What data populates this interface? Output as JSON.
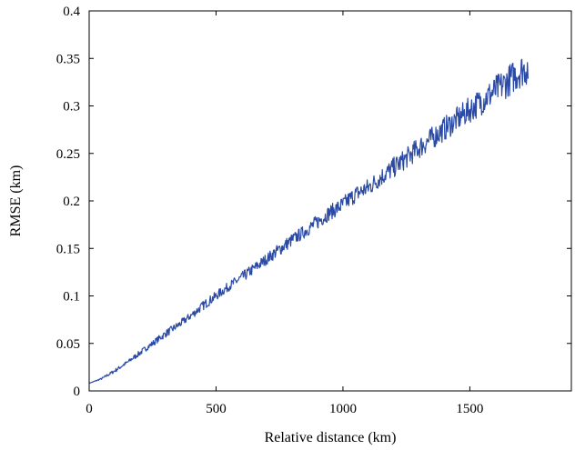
{
  "chart_data": {
    "type": "line",
    "title": "",
    "xlabel": "Relative distance (km)",
    "ylabel": "RMSE (km)",
    "xlim": [
      0,
      1900
    ],
    "ylim": [
      0,
      0.4
    ],
    "xticks": [
      0,
      500,
      1000,
      1500
    ],
    "yticks": [
      0,
      0.05,
      0.1,
      0.15,
      0.2,
      0.25,
      0.3,
      0.35,
      0.4
    ],
    "xtick_labels": [
      "0",
      "500",
      "1000",
      "1500"
    ],
    "ytick_labels": [
      "0",
      "0.05",
      "0.1",
      "0.15",
      "0.2",
      "0.25",
      "0.3",
      "0.35",
      "0.4"
    ],
    "grid": false,
    "box": true,
    "colors": {
      "series": "#2a4aa6",
      "axis": "#000000"
    },
    "series": [
      {
        "values_note_free": true,
        "x": [
          0,
          50,
          100,
          150,
          200,
          250,
          300,
          350,
          400,
          450,
          500,
          550,
          600,
          650,
          700,
          750,
          800,
          850,
          900,
          950,
          1000,
          1050,
          1100,
          1150,
          1200,
          1250,
          1300,
          1350,
          1400,
          1450,
          1500,
          1550,
          1600,
          1650,
          1700,
          1730
        ],
        "y": [
          0.008,
          0.013,
          0.021,
          0.03,
          0.04,
          0.05,
          0.06,
          0.069,
          0.079,
          0.09,
          0.1,
          0.11,
          0.119,
          0.129,
          0.139,
          0.149,
          0.159,
          0.168,
          0.178,
          0.188,
          0.196,
          0.207,
          0.214,
          0.225,
          0.235,
          0.245,
          0.256,
          0.266,
          0.276,
          0.286,
          0.296,
          0.306,
          0.316,
          0.326,
          0.337,
          0.34
        ],
        "noise": [
          0.0,
          0.001,
          0.002,
          0.002,
          0.003,
          0.003,
          0.004,
          0.004,
          0.004,
          0.005,
          0.005,
          0.005,
          0.006,
          0.006,
          0.006,
          0.007,
          0.007,
          0.007,
          0.008,
          0.008,
          0.009,
          0.009,
          0.01,
          0.01,
          0.011,
          0.011,
          0.012,
          0.012,
          0.013,
          0.013,
          0.014,
          0.015,
          0.016,
          0.017,
          0.018,
          0.018
        ]
      }
    ]
  }
}
